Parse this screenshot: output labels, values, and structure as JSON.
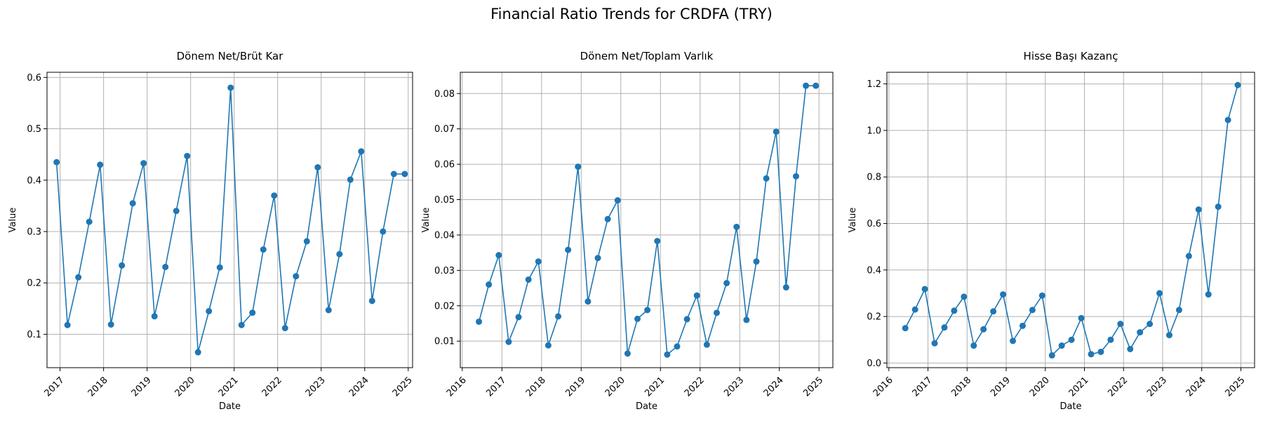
{
  "figure": {
    "title": "Financial Ratio Trends for CRDFA (TRY)"
  },
  "colors": {
    "series": "#1f77b4",
    "grid": "#b0b0b0",
    "axis": "#000000"
  },
  "chart_data": [
    {
      "type": "line",
      "title": "Dönem Net/Brüt Kar",
      "xlabel": "Date",
      "ylabel": "Value",
      "xlim": [
        2016.7,
        2025.1
      ],
      "ylim": [
        0.035,
        0.61
      ],
      "xticks": [
        2017,
        2018,
        2019,
        2020,
        2021,
        2022,
        2023,
        2024,
        2025
      ],
      "yticks": [
        0.1,
        0.2,
        0.3,
        0.4,
        0.5,
        0.6
      ],
      "ytick_labels": [
        "0.1",
        "0.2",
        "0.3",
        "0.4",
        "0.5",
        "0.6"
      ],
      "grid": true,
      "marker": "circle",
      "x": [
        2016.92,
        2017.17,
        2017.42,
        2017.67,
        2017.92,
        2018.17,
        2018.42,
        2018.67,
        2018.92,
        2019.17,
        2019.42,
        2019.67,
        2019.92,
        2020.17,
        2020.42,
        2020.67,
        2020.92,
        2021.17,
        2021.42,
        2021.67,
        2021.92,
        2022.17,
        2022.42,
        2022.67,
        2022.92,
        2023.17,
        2023.42,
        2023.67,
        2023.92,
        2024.17,
        2024.42,
        2024.67,
        2024.92
      ],
      "y": [
        0.435,
        0.118,
        0.211,
        0.319,
        0.43,
        0.119,
        0.234,
        0.355,
        0.433,
        0.135,
        0.231,
        0.34,
        0.447,
        0.065,
        0.145,
        0.23,
        0.58,
        0.118,
        0.142,
        0.265,
        0.37,
        0.112,
        0.213,
        0.281,
        0.425,
        0.147,
        0.256,
        0.401,
        0.456,
        0.165,
        0.3,
        0.412,
        0.412
      ]
    },
    {
      "type": "line",
      "title": "Dönem Net/Toplam Varlık",
      "xlabel": "Date",
      "ylabel": "Value",
      "xlim": [
        2015.95,
        2025.35
      ],
      "ylim": [
        0.0025,
        0.086
      ],
      "xticks": [
        2016,
        2017,
        2018,
        2019,
        2020,
        2021,
        2022,
        2023,
        2024,
        2025
      ],
      "yticks": [
        0.01,
        0.02,
        0.03,
        0.04,
        0.05,
        0.06,
        0.07,
        0.08
      ],
      "ytick_labels": [
        "0.01",
        "0.02",
        "0.03",
        "0.04",
        "0.05",
        "0.06",
        "0.07",
        "0.08"
      ],
      "grid": true,
      "marker": "circle",
      "x": [
        2016.42,
        2016.67,
        2016.92,
        2017.17,
        2017.42,
        2017.67,
        2017.92,
        2018.17,
        2018.42,
        2018.67,
        2018.92,
        2019.17,
        2019.42,
        2019.67,
        2019.92,
        2020.17,
        2020.42,
        2020.67,
        2020.92,
        2021.17,
        2021.42,
        2021.67,
        2021.92,
        2022.17,
        2022.42,
        2022.67,
        2022.92,
        2023.17,
        2023.42,
        2023.67,
        2023.92,
        2024.17,
        2024.42,
        2024.67,
        2024.92
      ],
      "y": [
        0.0155,
        0.026,
        0.0343,
        0.0098,
        0.0168,
        0.0274,
        0.0325,
        0.0088,
        0.017,
        0.0358,
        0.0593,
        0.0212,
        0.0335,
        0.0445,
        0.0498,
        0.0065,
        0.0163,
        0.0188,
        0.0383,
        0.0062,
        0.0085,
        0.0162,
        0.0229,
        0.009,
        0.018,
        0.0264,
        0.0423,
        0.016,
        0.0325,
        0.056,
        0.0692,
        0.0252,
        0.0566,
        0.0822,
        0.0822
      ]
    },
    {
      "type": "line",
      "title": "Hisse Başı Kazanç",
      "xlabel": "Date",
      "ylabel": "Value",
      "xlim": [
        2015.95,
        2025.35
      ],
      "ylim": [
        -0.02,
        1.25
      ],
      "xticks": [
        2016,
        2017,
        2018,
        2019,
        2020,
        2021,
        2022,
        2023,
        2024,
        2025
      ],
      "yticks": [
        0.0,
        0.2,
        0.4,
        0.6,
        0.8,
        1.0,
        1.2
      ],
      "ytick_labels": [
        "0.0",
        "0.2",
        "0.4",
        "0.6",
        "0.8",
        "1.0",
        "1.2"
      ],
      "grid": true,
      "marker": "circle",
      "x": [
        2016.42,
        2016.67,
        2016.92,
        2017.17,
        2017.42,
        2017.67,
        2017.92,
        2018.17,
        2018.42,
        2018.67,
        2018.92,
        2019.17,
        2019.42,
        2019.67,
        2019.92,
        2020.17,
        2020.42,
        2020.67,
        2020.92,
        2021.17,
        2021.42,
        2021.67,
        2021.92,
        2022.17,
        2022.42,
        2022.67,
        2022.92,
        2023.17,
        2023.42,
        2023.67,
        2023.92,
        2024.17,
        2024.42,
        2024.67,
        2024.92
      ],
      "y": [
        0.15,
        0.23,
        0.318,
        0.085,
        0.153,
        0.225,
        0.285,
        0.075,
        0.145,
        0.222,
        0.295,
        0.095,
        0.16,
        0.228,
        0.29,
        0.033,
        0.075,
        0.1,
        0.193,
        0.038,
        0.048,
        0.1,
        0.168,
        0.06,
        0.132,
        0.168,
        0.3,
        0.12,
        0.228,
        0.46,
        0.66,
        0.295,
        0.672,
        1.045,
        1.195
      ]
    }
  ]
}
